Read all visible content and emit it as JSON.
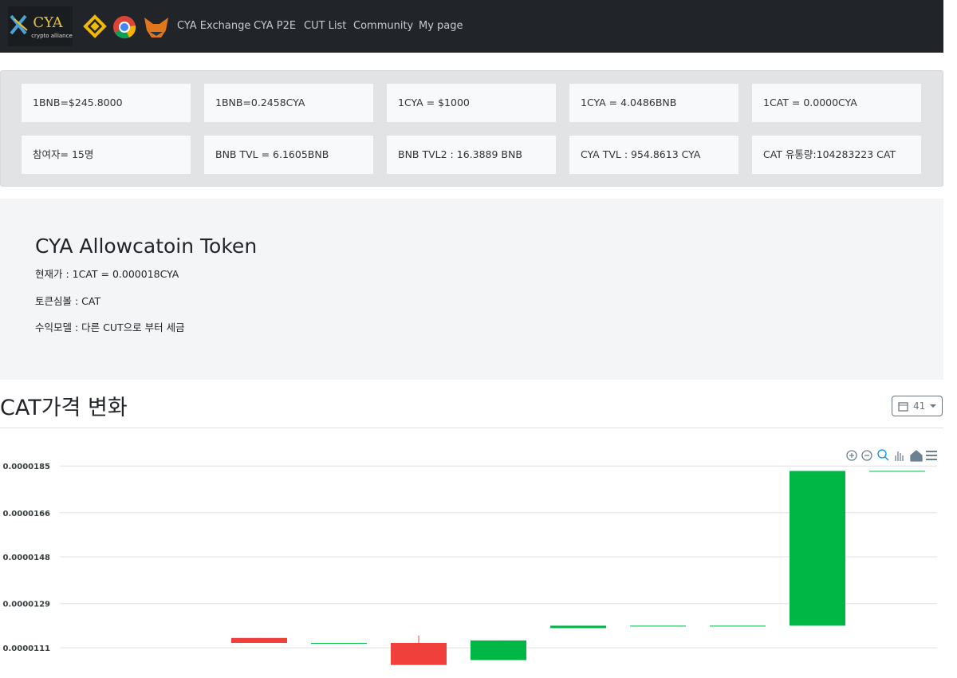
{
  "nav": {
    "logo_name": "CYA",
    "logo_tagline": "crypto alliance",
    "links": [
      "CYA Exchange",
      "CYA P2E",
      "CUT List",
      "Community",
      "My page"
    ]
  },
  "stats": [
    [
      "1BNB=$245.8000",
      "1BNB=0.2458CYA",
      "1CYA = $1000",
      "1CYA = 4.0486BNB",
      "1CAT = 0.0000CYA"
    ],
    [
      "참여자= 15명",
      "BNB TVL = 6.1605BNB",
      "BNB TVL2 : 16.3889 BNB",
      "CYA TVL : 954.8613 CYA",
      "CAT 유통량:104283223 CAT"
    ]
  ],
  "token": {
    "title": "CYA Allowcatoin Token",
    "lines": [
      "현재가 : 1CAT = 0.000018CYA",
      "토큰심볼 : CAT",
      "수익모델 : 다른 CUT으로 부터 세금"
    ]
  },
  "section": {
    "title": "CAT가격 변화",
    "range": "41"
  },
  "chart_data": {
    "type": "candlestick",
    "categories": [
      null,
      null,
      null,
      null,
      null,
      null,
      null,
      null,
      null,
      null,
      null
    ],
    "open": [
      null,
      null,
      1.15e-05,
      1.13e-05,
      1.13e-05,
      1.06e-05,
      1.19e-05,
      1.2e-05,
      1.2e-05,
      1.2e-05,
      1.83e-05
    ],
    "high": [
      null,
      null,
      1.15e-05,
      1.13e-05,
      1.16e-05,
      1.14e-05,
      1.2e-05,
      1.2e-05,
      1.2e-05,
      1.83e-05,
      1.83e-05
    ],
    "low": [
      null,
      null,
      1.13e-05,
      1.13e-05,
      1.04e-05,
      1.06e-05,
      1.19e-05,
      1.2e-05,
      1.2e-05,
      1.2e-05,
      1.83e-05
    ],
    "close": [
      null,
      null,
      1.13e-05,
      1.13e-05,
      1.04e-05,
      1.14e-05,
      1.2e-05,
      1.2e-05,
      1.2e-05,
      1.83e-05,
      1.83e-05
    ],
    "up_color": "#00b746",
    "down_color": "#ef403c",
    "ylim": [
      1e-05,
      1.88e-05
    ],
    "yticks": [
      1.11e-05,
      1.29e-05,
      1.48e-05,
      1.66e-05,
      1.85e-05
    ],
    "grid": true
  }
}
